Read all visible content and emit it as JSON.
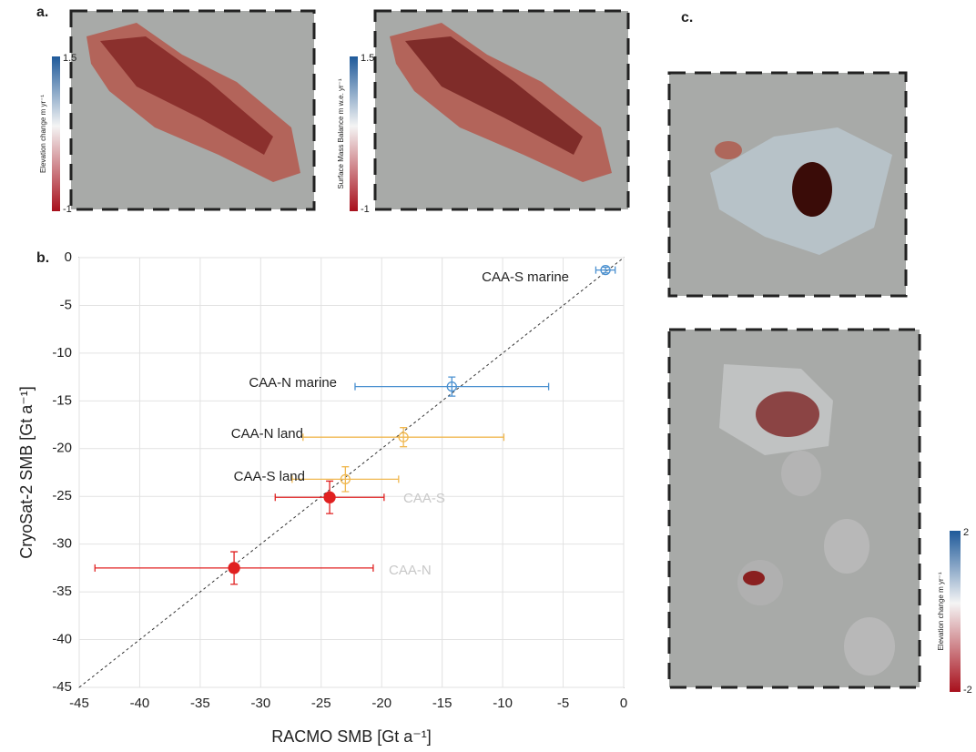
{
  "figure": {
    "panel_labels": [
      "a.",
      "b.",
      "c."
    ],
    "colorbars": [
      {
        "label": "Elevation change m yr⁻¹",
        "ticks": [
          1.5,
          -1
        ]
      },
      {
        "label": "Surface Mass Balance m w.e. yr⁻¹",
        "ticks": [
          1.5,
          -1
        ]
      },
      {
        "label": "Elevation change m yr⁻¹",
        "ticks": [
          2,
          -2
        ]
      }
    ]
  },
  "chart_data": {
    "type": "scatter",
    "xlabel": "RACMO SMB [Gt a⁻¹]",
    "ylabel": "CryoSat-2 SMB [Gt a⁻¹]",
    "xlim": [
      -45,
      0
    ],
    "ylim": [
      -45,
      0
    ],
    "xticks": [
      -45,
      -40,
      -35,
      -30,
      -25,
      -20,
      -15,
      -10,
      -5,
      0
    ],
    "yticks": [
      -45,
      -40,
      -35,
      -30,
      -25,
      -20,
      -15,
      -10,
      -5,
      0
    ],
    "grid": true,
    "series": [
      {
        "name": "CAA-S marine",
        "color": "#4a90d0",
        "filled": false,
        "x": [
          -1.5
        ],
        "values": [
          -1.3
        ],
        "xerr": [
          0.8
        ],
        "yerr": [
          0.3
        ]
      },
      {
        "name": "CAA-N marine",
        "color": "#4a90d0",
        "filled": false,
        "x": [
          -14.2
        ],
        "values": [
          -13.5
        ],
        "xerr": [
          8
        ],
        "yerr": [
          1
        ]
      },
      {
        "name": "CAA-N land",
        "color": "#f0b850",
        "filled": false,
        "x": [
          -18.2
        ],
        "values": [
          -18.8
        ],
        "xerr": [
          8.3
        ],
        "yerr": [
          1
        ]
      },
      {
        "name": "CAA-S land",
        "color": "#f0b850",
        "filled": false,
        "x": [
          -23
        ],
        "values": [
          -23.2
        ],
        "xerr": [
          4.4
        ],
        "yerr": [
          1.3
        ]
      },
      {
        "name": "CAA-S",
        "color": "#e02020",
        "filled": true,
        "x": [
          -24.3
        ],
        "values": [
          -25.1
        ],
        "xerr": [
          4.5
        ],
        "yerr": [
          1.7
        ]
      },
      {
        "name": "CAA-N",
        "color": "#e02020",
        "filled": true,
        "x": [
          -32.2
        ],
        "values": [
          -32.5
        ],
        "xerr": [
          11.5
        ],
        "yerr": [
          1.7
        ]
      }
    ]
  }
}
